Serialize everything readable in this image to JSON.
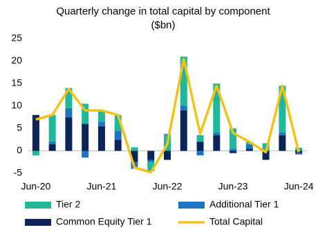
{
  "chart_data": {
    "type": "bar",
    "title": "Quarterly change in total capital by component",
    "subtitle": "($bn)",
    "categories": [
      "Jun-20",
      null,
      null,
      null,
      "Jun-21",
      null,
      null,
      null,
      "Jun-22",
      null,
      null,
      null,
      "Jun-23",
      null,
      null,
      null,
      "Jun-24"
    ],
    "series": [
      {
        "name": "Common Equity Tier 1",
        "color": "#0b2559",
        "kind": "bar",
        "values": [
          8,
          1.5,
          7.5,
          6,
          5.5,
          2.5,
          -2.5,
          -2,
          -2,
          9,
          2,
          3.5,
          -0.5,
          0.5,
          -2,
          3.5,
          -0.5
        ]
      },
      {
        "name": "Additional Tier 1",
        "color": "#1c74c4",
        "kind": "bar",
        "values": [
          0,
          0.5,
          2,
          -1.5,
          1,
          2,
          -1.5,
          -0.5,
          0,
          1,
          -1,
          0.5,
          0.5,
          1,
          0,
          0.5,
          -0.3
        ]
      },
      {
        "name": "Tier 2",
        "color": "#1fb89b",
        "kind": "bar",
        "values": [
          -1,
          6,
          4.5,
          4.5,
          2.5,
          3.5,
          0.8,
          -2,
          3.8,
          11,
          1.5,
          11,
          4.5,
          0.5,
          1.7,
          10.5,
          0.7
        ]
      },
      {
        "name": "Total Capital",
        "color": "#f2c21b",
        "kind": "line",
        "values": [
          7,
          8,
          13.8,
          9,
          9,
          8,
          -3.7,
          -4.8,
          1.5,
          20.5,
          3.8,
          14.5,
          4,
          2,
          -0.3,
          14.5,
          -0.3
        ]
      }
    ],
    "ylim": [
      -5,
      25
    ],
    "yticks": [
      -5,
      0,
      5,
      10,
      15,
      20,
      25
    ]
  }
}
